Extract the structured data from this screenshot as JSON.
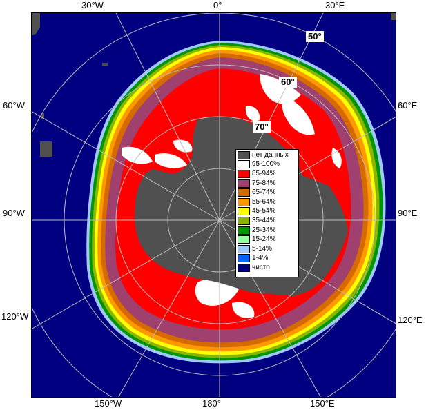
{
  "map": {
    "longitude_labels_top": [
      "30°W",
      "0°",
      "30°E"
    ],
    "longitude_labels_bottom": [
      "150°W",
      "180°",
      "150°E"
    ],
    "longitude_labels_left": [
      "60°W",
      "90°W",
      "120°W"
    ],
    "longitude_labels_right": [
      "60°E",
      "90°E",
      "120°E"
    ],
    "latitude_labels": [
      "50°",
      "60°",
      "70°"
    ],
    "colors": {
      "ocean": "#000080",
      "no_data": "#505050",
      "land_frame": "#000000"
    }
  },
  "legend": {
    "items": [
      {
        "label": "нет данных",
        "color": "#505050"
      },
      {
        "label": "95-100%",
        "color": "#ffffff"
      },
      {
        "label": "85-94%",
        "color": "#ff0000"
      },
      {
        "label": "75-84%",
        "color": "#a0406e"
      },
      {
        "label": "65-74%",
        "color": "#d46a00"
      },
      {
        "label": "55-64%",
        "color": "#ff9900"
      },
      {
        "label": "45-54%",
        "color": "#ffff00"
      },
      {
        "label": "35-44%",
        "color": "#8cb400"
      },
      {
        "label": "25-34%",
        "color": "#009600"
      },
      {
        "label": "15-24%",
        "color": "#96ffa0"
      },
      {
        "label": "5-14%",
        "color": "#a0c8ff"
      },
      {
        "label": "1-4%",
        "color": "#0064ff"
      },
      {
        "label": "чисто",
        "color": "#000080"
      }
    ]
  }
}
